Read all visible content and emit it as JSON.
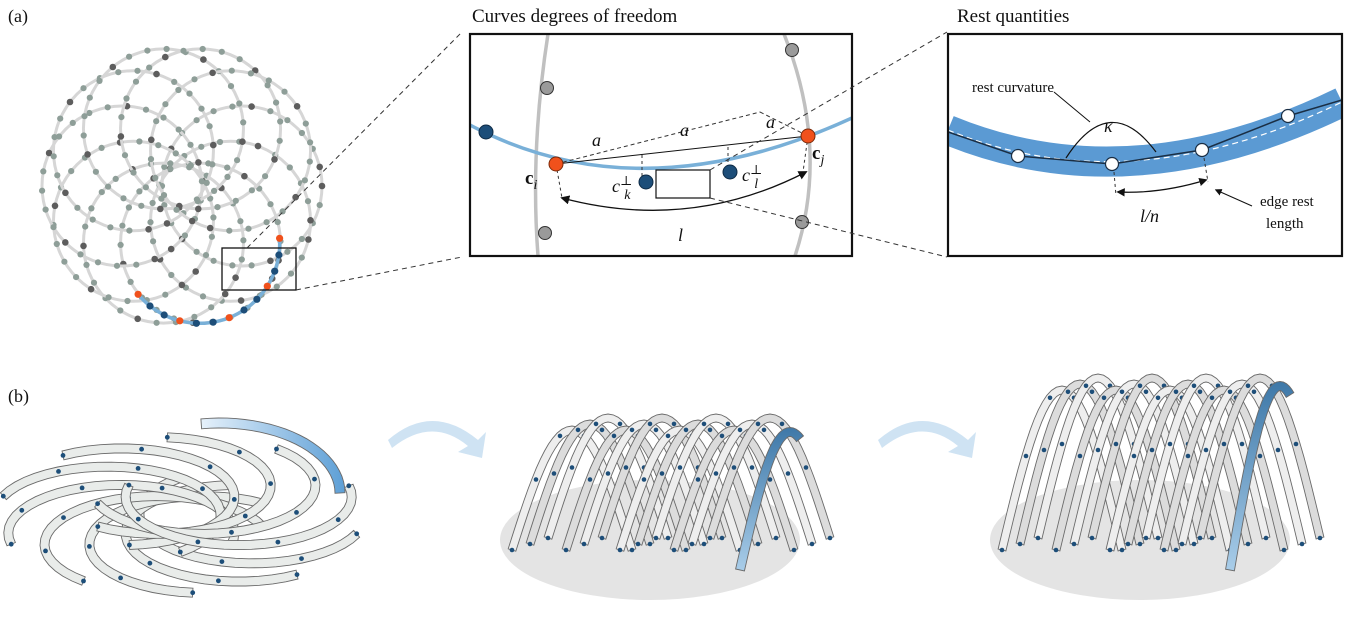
{
  "panel_a_label": "(a)",
  "panel_b_label": "(b)",
  "inset1": {
    "title": "Curves degrees of freedom",
    "label_a": "a",
    "label_ci": "c",
    "sub_i": "i",
    "label_cj": "c",
    "sub_j": "j",
    "label_ck": "c",
    "sub_k": "k",
    "label_cl": "c",
    "sub_l": "l",
    "perp": "⊥",
    "label_l": "l"
  },
  "inset2": {
    "title": "Rest quantities",
    "rest_curvature": "rest curvature",
    "kappa": "κ",
    "ln": "l/n",
    "edge_rest_1": "edge rest",
    "edge_rest_2": "length"
  },
  "colors": {
    "node_gray": "#8e9e98",
    "node_dark": "#5d5d5d",
    "node_blue": "#1d4e79",
    "node_red": "#f0511c",
    "curve_blue": "#79b0d8",
    "curve_gray": "#c2c2c2",
    "band_blue": "#5b9ad3",
    "arrow_blue": "#cfe3f3"
  }
}
